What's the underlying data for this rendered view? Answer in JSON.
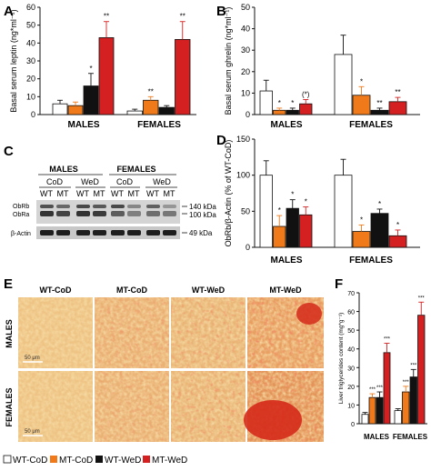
{
  "colors": {
    "wt_cod": "#ffffff",
    "mt_cod": "#f07a1a",
    "wt_wed": "#111111",
    "mt_wed": "#d42020",
    "orange_text": "#f07a1a",
    "red_text": "#d42020"
  },
  "legend": {
    "items": [
      "WT-CoD",
      "MT-CoD",
      "WT-WeD",
      "MT-WeD"
    ]
  },
  "panels": {
    "A": {
      "letter": "A"
    },
    "B": {
      "letter": "B"
    },
    "C": {
      "letter": "C",
      "males": "MALES",
      "females": "FEMALES",
      "cod": "CoD",
      "wed": "WeD",
      "wt": "WT",
      "mt": "MT",
      "obrb": "ObRb",
      "obra": "ObRa",
      "actin": "β-Actin",
      "kda140": "140 kDa",
      "kda100": "100 kDa",
      "kda49": "49 kDa"
    },
    "D": {
      "letter": "D"
    },
    "E": {
      "letter": "E",
      "cols": [
        "WT-CoD",
        "MT-CoD",
        "WT-WeD",
        "MT-WeD"
      ],
      "rows": [
        "MALES",
        "FEMALES"
      ],
      "scale": "50 μm"
    },
    "F": {
      "letter": "F"
    }
  },
  "chart_data": [
    {
      "panel": "A",
      "type": "bar",
      "ylabel": "Basal serum leptin (ng*ml⁻¹)",
      "ylim": [
        0,
        60
      ],
      "yticks": [
        0,
        10,
        20,
        30,
        40,
        50,
        60
      ],
      "categories": [
        "MALES",
        "FEMALES"
      ],
      "series": [
        {
          "name": "WT-CoD",
          "values": [
            6,
            2
          ],
          "err": [
            2,
            1
          ]
        },
        {
          "name": "MT-CoD",
          "values": [
            5,
            8
          ],
          "err": [
            2,
            2
          ]
        },
        {
          "name": "WT-WeD",
          "values": [
            16,
            4
          ],
          "err": [
            7,
            1
          ]
        },
        {
          "name": "MT-WeD",
          "values": [
            43,
            42
          ],
          "err": [
            9,
            10
          ]
        }
      ],
      "annotations": [
        [
          "",
          "",
          "*",
          "**"
        ],
        [
          "",
          "**",
          "",
          "**"
        ]
      ]
    },
    {
      "panel": "B",
      "type": "bar",
      "ylabel": "Basal serum ghrelin (ng*ml⁻¹)",
      "ylim": [
        0,
        50
      ],
      "yticks": [
        0,
        10,
        20,
        30,
        40,
        50
      ],
      "categories": [
        "MALES",
        "FEMALES"
      ],
      "series": [
        {
          "name": "WT-CoD",
          "values": [
            11,
            28
          ],
          "err": [
            5,
            9
          ]
        },
        {
          "name": "MT-CoD",
          "values": [
            2,
            9
          ],
          "err": [
            1,
            4
          ]
        },
        {
          "name": "WT-WeD",
          "values": [
            2,
            2
          ],
          "err": [
            1,
            1
          ]
        },
        {
          "name": "MT-WeD",
          "values": [
            5,
            6
          ],
          "err": [
            2,
            2
          ]
        }
      ],
      "annotations": [
        [
          "",
          "*",
          "*",
          "(*)"
        ],
        [
          "",
          "*",
          "**",
          "**"
        ]
      ]
    },
    {
      "panel": "D",
      "type": "bar",
      "ylabel": "ObRb/β-Actin (% of WT-CoD)",
      "ylim": [
        0,
        150
      ],
      "yticks": [
        0,
        50,
        100,
        150
      ],
      "categories": [
        "MALES",
        "FEMALES"
      ],
      "series": [
        {
          "name": "WT-CoD",
          "values": [
            100,
            100
          ],
          "err": [
            20,
            22
          ]
        },
        {
          "name": "MT-CoD",
          "values": [
            29,
            22
          ],
          "err": [
            15,
            9
          ]
        },
        {
          "name": "WT-WeD",
          "values": [
            54,
            47
          ],
          "err": [
            12,
            6
          ]
        },
        {
          "name": "MT-WeD",
          "values": [
            45,
            16
          ],
          "err": [
            11,
            8
          ]
        }
      ],
      "annotations": [
        [
          "",
          "*",
          "*",
          "*"
        ],
        [
          "",
          "*",
          "*",
          "*"
        ]
      ]
    },
    {
      "panel": "F",
      "type": "bar",
      "ylabel": "Liver triglycerides content (mg*g⁻¹)",
      "ylim": [
        0,
        70
      ],
      "yticks": [
        0,
        10,
        20,
        30,
        40,
        50,
        60,
        70
      ],
      "categories": [
        "MALES",
        "FEMALES"
      ],
      "series": [
        {
          "name": "WT-CoD",
          "values": [
            5,
            7
          ],
          "err": [
            1,
            1
          ]
        },
        {
          "name": "MT-CoD",
          "values": [
            14,
            17
          ],
          "err": [
            2,
            3
          ]
        },
        {
          "name": "WT-WeD",
          "values": [
            14,
            25
          ],
          "err": [
            3,
            4
          ]
        },
        {
          "name": "MT-WeD",
          "values": [
            38,
            58
          ],
          "err": [
            5,
            7
          ]
        }
      ],
      "annotations": [
        [
          "",
          "***",
          "***",
          "***"
        ],
        [
          "",
          "***",
          "***",
          "***"
        ]
      ]
    }
  ]
}
